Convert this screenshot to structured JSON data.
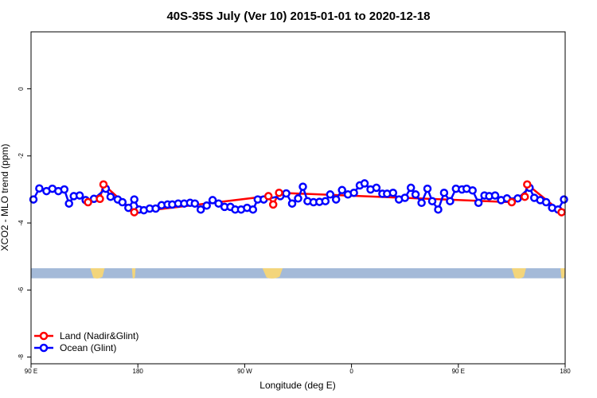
{
  "chart_data": {
    "type": "line",
    "title": "40S-35S July (Ver 10)   2015-01-01 to 2020-12-18",
    "xlabel": "Longitude (deg E)",
    "ylabel": "XCO2 - MLO trend (ppm)",
    "x_ticks": [
      {
        "value": 90,
        "label": "90 E"
      },
      {
        "value": 180,
        "label": "180"
      },
      {
        "value": 270,
        "label": "90 W"
      },
      {
        "value": 360,
        "label": "0"
      },
      {
        "value": 450,
        "label": "90 E"
      },
      {
        "value": 540,
        "label": "180"
      }
    ],
    "y_ticks": [
      0,
      -2,
      -4,
      -6,
      -8
    ],
    "xlim": [
      90,
      540
    ],
    "ylim": [
      -8.2,
      1.7
    ],
    "grid": false,
    "legend_position": "bottom-left",
    "land_band": {
      "y_top": -5.35,
      "y_bottom": -5.65,
      "color": "#a4bad8"
    },
    "land_patches": [
      {
        "x_start": 140,
        "x_end": 152
      },
      {
        "x_start": 175,
        "x_end": 178
      },
      {
        "x_start": 285,
        "x_end": 302
      },
      {
        "x_start": 495,
        "x_end": 507
      },
      {
        "x_start": 536,
        "x_end": 540
      }
    ],
    "series": [
      {
        "name": "Land (Nadir&Glint)",
        "color": "#ff0000",
        "points": [
          [
            138,
            -3.38
          ],
          [
            148,
            -3.28
          ],
          [
            151,
            -2.85
          ],
          [
            177,
            -3.68
          ],
          [
            290,
            -3.2
          ],
          [
            294,
            -3.45
          ],
          [
            299,
            -3.1
          ],
          [
            495,
            -3.38
          ],
          [
            506,
            -3.22
          ],
          [
            508,
            -2.85
          ],
          [
            537,
            -3.68
          ]
        ]
      },
      {
        "name": "Ocean (Glint)",
        "color": "#0000ff",
        "points": [
          [
            92,
            -3.3
          ],
          [
            97,
            -2.97
          ],
          [
            103,
            -3.05
          ],
          [
            108,
            -2.98
          ],
          [
            113,
            -3.05
          ],
          [
            118,
            -3.0
          ],
          [
            122,
            -3.42
          ],
          [
            126,
            -3.2
          ],
          [
            131,
            -3.18
          ],
          [
            136,
            -3.32
          ],
          [
            143,
            -3.28
          ],
          [
            153,
            -2.98
          ],
          [
            157,
            -3.22
          ],
          [
            163,
            -3.3
          ],
          [
            167,
            -3.38
          ],
          [
            172,
            -3.55
          ],
          [
            177,
            -3.3
          ],
          [
            181,
            -3.6
          ],
          [
            185,
            -3.62
          ],
          [
            190,
            -3.57
          ],
          [
            195,
            -3.57
          ],
          [
            200,
            -3.47
          ],
          [
            205,
            -3.45
          ],
          [
            209,
            -3.45
          ],
          [
            214,
            -3.42
          ],
          [
            219,
            -3.42
          ],
          [
            224,
            -3.4
          ],
          [
            228,
            -3.42
          ],
          [
            233,
            -3.6
          ],
          [
            238,
            -3.48
          ],
          [
            243,
            -3.32
          ],
          [
            248,
            -3.42
          ],
          [
            253,
            -3.52
          ],
          [
            258,
            -3.52
          ],
          [
            262,
            -3.6
          ],
          [
            267,
            -3.6
          ],
          [
            272,
            -3.55
          ],
          [
            277,
            -3.6
          ],
          [
            281,
            -3.3
          ],
          [
            286,
            -3.3
          ],
          [
            300,
            -3.2
          ],
          [
            305,
            -3.12
          ],
          [
            310,
            -3.42
          ],
          [
            315,
            -3.27
          ],
          [
            319,
            -2.92
          ],
          [
            323,
            -3.35
          ],
          [
            328,
            -3.38
          ],
          [
            333,
            -3.37
          ],
          [
            338,
            -3.35
          ],
          [
            342,
            -3.15
          ],
          [
            347,
            -3.3
          ],
          [
            352,
            -3.02
          ],
          [
            357,
            -3.15
          ],
          [
            362,
            -3.1
          ],
          [
            367,
            -2.88
          ],
          [
            371,
            -2.82
          ],
          [
            376,
            -3.0
          ],
          [
            381,
            -2.95
          ],
          [
            386,
            -3.13
          ],
          [
            390,
            -3.13
          ],
          [
            395,
            -3.1
          ],
          [
            400,
            -3.3
          ],
          [
            405,
            -3.25
          ],
          [
            410,
            -2.95
          ],
          [
            414,
            -3.15
          ],
          [
            419,
            -3.4
          ],
          [
            424,
            -2.98
          ],
          [
            428,
            -3.35
          ],
          [
            433,
            -3.6
          ],
          [
            438,
            -3.1
          ],
          [
            443,
            -3.35
          ],
          [
            448,
            -2.98
          ],
          [
            453,
            -3.0
          ],
          [
            457,
            -2.98
          ],
          [
            462,
            -3.03
          ],
          [
            467,
            -3.4
          ],
          [
            472,
            -3.18
          ],
          [
            476,
            -3.2
          ],
          [
            481,
            -3.18
          ],
          [
            486,
            -3.32
          ],
          [
            491,
            -3.27
          ],
          [
            500,
            -3.27
          ],
          [
            510,
            -2.95
          ],
          [
            514,
            -3.25
          ],
          [
            519,
            -3.32
          ],
          [
            524,
            -3.38
          ],
          [
            529,
            -3.55
          ],
          [
            534,
            -3.6
          ],
          [
            539,
            -3.3
          ]
        ]
      }
    ]
  }
}
